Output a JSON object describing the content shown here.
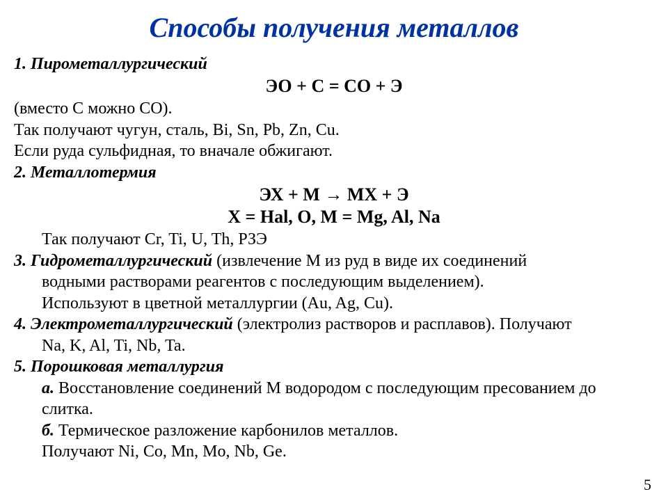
{
  "title": "Способы получения металлов",
  "section1": {
    "heading_prefix": "1.",
    "heading": " Пирометаллургический",
    "equation": "ЭО + С  =  СО  +   Э",
    "line1": "(вместо С можно СО).",
    "line2": "Так получают чугун, сталь, Bi, Sn, Pb, Zn, Cu.",
    "line3": "Если руда сульфидная, то вначале обжигают."
  },
  "section2": {
    "heading_prefix": "2.",
    "heading": " Металлотермия",
    "equation1": "ЭХ  +  М    →  МХ  +  Э",
    "equation2": "Х  =  Hal, О,    М  =  Mg, Al, Na",
    "line1": "Так получают  Cr, Ti, U, Th, РЗЭ"
  },
  "section3": {
    "heading_prefix": "3.",
    "heading": " Гидрометаллургический",
    "tail": " (извлечение М из руд в виде их соединений",
    "line2": "водными растворами реагентов с последующим выделением).",
    "line3": "Используют в цветной металлургии (Au, Ag, Cu)."
  },
  "section4": {
    "heading_prefix": "4.",
    "heading": " Электрометаллургический",
    "tail": " (электролиз растворов и расплавов). Получают",
    "line2": "Na, K, Al, Ti, Nb, Ta."
  },
  "section5": {
    "heading_prefix": "5.",
    "heading": " Порошковая металлургия",
    "a_prefix": "а.",
    "a_text": " Восстановление соединений М водородом с последующим пресованием до",
    "a_line2": "слитка.",
    "b_prefix": "б.",
    "b_text": " Термическое разложение карбонилов металлов.",
    "last": "Получают Ni, Co, Mn, Mo, Nb, Ge."
  },
  "pagenum": "5",
  "colors": {
    "title": "#0033a0",
    "text": "#000000",
    "background": "#ffffff"
  },
  "fontsize": {
    "title": 40,
    "body": 24,
    "equation": 26
  }
}
